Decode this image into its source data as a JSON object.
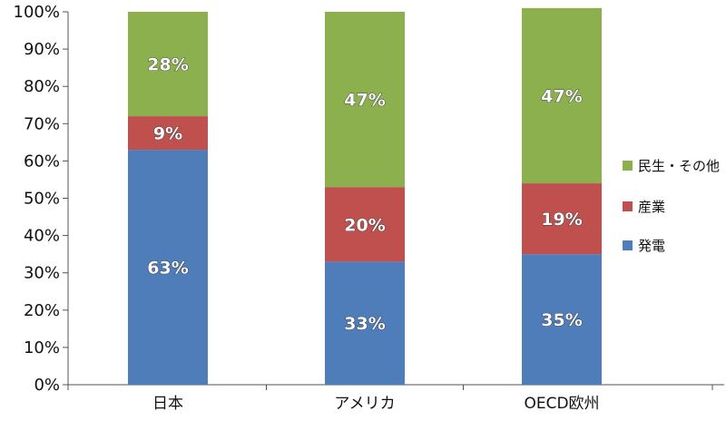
{
  "chart_data": {
    "type": "bar",
    "stacked": true,
    "categories": [
      "日本",
      "アメリカ",
      "OECD欧州"
    ],
    "series": [
      {
        "name": "発電",
        "values": [
          63,
          33,
          35
        ],
        "labels": [
          "63%",
          "33%",
          "35%"
        ],
        "color": "#4f7dba"
      },
      {
        "name": "産業",
        "values": [
          9,
          20,
          19
        ],
        "labels": [
          "9%",
          "20%",
          "19%"
        ],
        "color": "#c0504d"
      },
      {
        "name": "民生・その他",
        "values": [
          28,
          47,
          47
        ],
        "labels": [
          "28%",
          "47%",
          "47%"
        ],
        "color": "#8db04e"
      }
    ],
    "ylim": [
      0,
      100
    ],
    "yticks": [
      "0%",
      "10%",
      "20%",
      "30%",
      "40%",
      "50%",
      "60%",
      "70%",
      "80%",
      "90%",
      "100%"
    ],
    "legend_position": "right",
    "legend_order": [
      "民生・その他",
      "産業",
      "発電"
    ],
    "grid": false
  }
}
